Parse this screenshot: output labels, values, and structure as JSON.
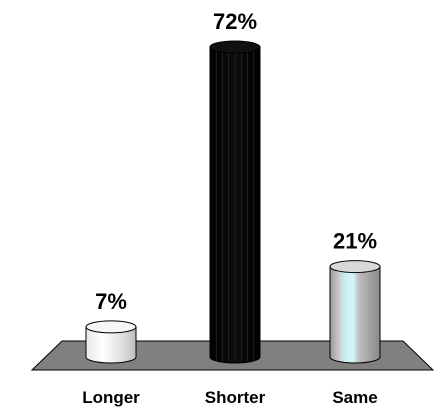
{
  "chart_data": {
    "type": "bar",
    "categories": [
      "Longer",
      "Shorter",
      "Same"
    ],
    "values": [
      7,
      72,
      21
    ],
    "value_labels": [
      "7%",
      "72%",
      "21%"
    ],
    "ylim": [
      0,
      72
    ],
    "grid": false,
    "legend": "none",
    "bar_colors": [
      "#f2f2f2",
      "#000000",
      "#c8c8c8"
    ],
    "floor_color": "#808080"
  }
}
